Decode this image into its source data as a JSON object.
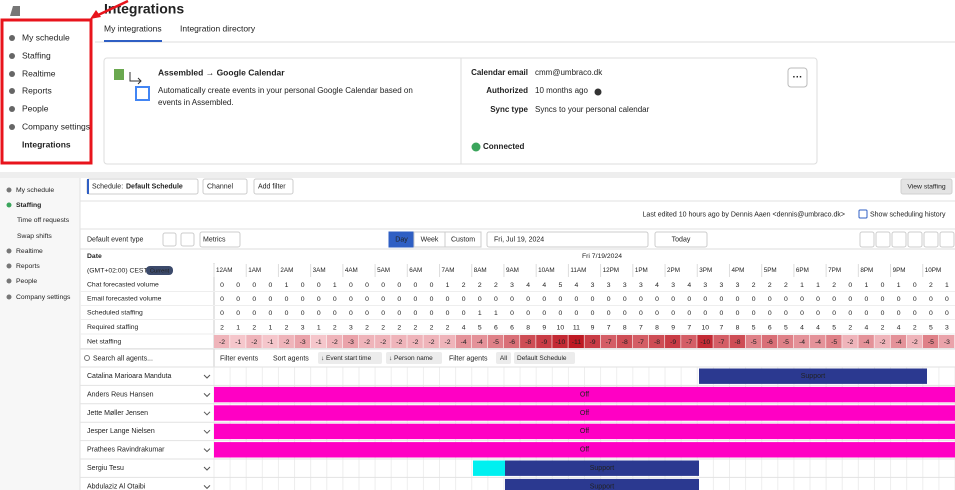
{
  "top_nav": {
    "items": [
      "My schedule",
      "Staffing",
      "Realtime",
      "Reports",
      "People",
      "Company settings",
      "Integrations"
    ]
  },
  "header": {
    "title": "Integrations",
    "tabs": [
      "My integrations",
      "Integration directory"
    ]
  },
  "card": {
    "name": "Assembled → Google Calendar",
    "description": [
      "Automatically create events in your personal Google Calendar based on",
      "events in Assembled."
    ],
    "fields": [
      [
        "Calendar email",
        "cmm@umbraco.dk"
      ],
      [
        "Authorized",
        "10 months ago"
      ],
      [
        "Sync type",
        "Syncs to your personal calendar"
      ]
    ],
    "status": "Connected",
    "menu": "···"
  },
  "side_nav": {
    "items": [
      "My schedule",
      "Staffing",
      "Time off requests",
      "Swap shifts",
      "Realtime",
      "Reports",
      "People",
      "Company settings"
    ]
  },
  "toolbar": {
    "schedule_label": "Schedule:",
    "schedule": "Default Schedule",
    "channel": "Channel",
    "add_filter": "Add filter",
    "view_staffing": "View staffing"
  },
  "history": {
    "last_edited": "Last edited 10 hours ago by Dennis Aaen <dennis@umbraco.dk>",
    "link": "Show scheduling history"
  },
  "controls": {
    "event_type": "Default event type",
    "metrics": "Metrics",
    "views": [
      "Day",
      "Week",
      "Custom"
    ],
    "date": "Fri, Jul 19, 2024",
    "today": "Today"
  },
  "grid": {
    "date_label": "Date",
    "date": "Fri 7/19/2024",
    "timezone": "(GMT+02:00) CEST",
    "current": "Current",
    "hours": [
      "12AM",
      "1AM",
      "2AM",
      "3AM",
      "4AM",
      "5AM",
      "6AM",
      "7AM",
      "8AM",
      "9AM",
      "10AM",
      "11AM",
      "12PM",
      "1PM",
      "2PM",
      "3PM",
      "4PM",
      "5PM",
      "6PM",
      "7PM",
      "8PM",
      "9PM",
      "10PM"
    ],
    "metrics": [
      {
        "label": "Chat forecasted volume",
        "values": [
          0,
          0,
          0,
          0,
          1,
          0,
          0,
          1,
          0,
          0,
          0,
          0,
          0,
          0,
          1,
          2,
          2,
          2,
          3,
          4,
          4,
          5,
          4,
          3,
          3,
          3,
          3,
          4,
          3,
          4,
          3,
          3,
          3,
          2,
          2,
          2,
          1,
          1,
          2,
          0,
          1,
          0,
          1,
          0,
          2,
          1
        ]
      },
      {
        "label": "Email forecasted volume",
        "values": [
          0,
          0,
          0,
          0,
          0,
          0,
          0,
          0,
          0,
          0,
          0,
          0,
          0,
          0,
          0,
          0,
          0,
          0,
          0,
          0,
          0,
          0,
          0,
          0,
          0,
          0,
          0,
          0,
          0,
          0,
          0,
          0,
          0,
          0,
          0,
          0,
          0,
          0,
          0,
          0,
          0,
          0,
          0,
          0,
          0,
          0
        ]
      },
      {
        "label": "Scheduled staffing",
        "values": [
          0,
          0,
          0,
          0,
          0,
          0,
          0,
          0,
          0,
          0,
          0,
          0,
          0,
          0,
          0,
          0,
          1,
          1,
          0,
          0,
          0,
          0,
          0,
          0,
          0,
          0,
          0,
          0,
          0,
          0,
          0,
          0,
          0,
          0,
          0,
          0,
          0,
          0,
          0,
          0,
          0,
          0,
          0,
          0,
          0,
          0
        ]
      },
      {
        "label": "Required staffing",
        "values": [
          2,
          1,
          2,
          1,
          2,
          3,
          1,
          2,
          3,
          2,
          2,
          2,
          2,
          2,
          2,
          4,
          5,
          6,
          6,
          8,
          9,
          10,
          11,
          9,
          7,
          8,
          7,
          8,
          9,
          7,
          10,
          7,
          8,
          5,
          6,
          5,
          4,
          4,
          5,
          2,
          4,
          2,
          4,
          2,
          5,
          3
        ]
      },
      {
        "label": "Net staffing",
        "values": [
          -2,
          -1,
          -2,
          -1,
          -2,
          -3,
          -1,
          -2,
          -3,
          -2,
          -2,
          -2,
          -2,
          -2,
          -2,
          -4,
          -4,
          -5,
          -6,
          -8,
          -9,
          -10,
          -11,
          -9,
          -7,
          -8,
          -7,
          -8,
          -9,
          -7,
          -10,
          -7,
          -8,
          -5,
          -6,
          -5,
          -4,
          -4,
          -5,
          -2,
          -4,
          -2,
          -4,
          -2,
          -5,
          -3
        ]
      }
    ]
  },
  "agents_bar": {
    "search": "Search all agents...",
    "filter_events": "Filter events",
    "sort_agents": "Sort agents",
    "sort_by": [
      "↓ Event start time",
      "↓ Person name"
    ],
    "filter_agents": "Filter agents",
    "all": "All",
    "schedule": "Default Schedule"
  },
  "agents": [
    {
      "name": "Catalina Marioara Manduta",
      "events": [
        "Support"
      ]
    },
    {
      "name": "Anders Reus Hansen",
      "events": [
        "Off"
      ]
    },
    {
      "name": "Jette Møller Jensen",
      "events": [
        "Off"
      ]
    },
    {
      "name": "Jesper Lange Nielsen",
      "events": [
        "Off"
      ]
    },
    {
      "name": "Prathees Ravindrakumar",
      "events": [
        "Off"
      ]
    },
    {
      "name": "Sergiu Tesu",
      "events": [
        "Support"
      ]
    },
    {
      "name": "Abdulaziz Al Otaibi",
      "events": [
        "Support"
      ]
    }
  ]
}
